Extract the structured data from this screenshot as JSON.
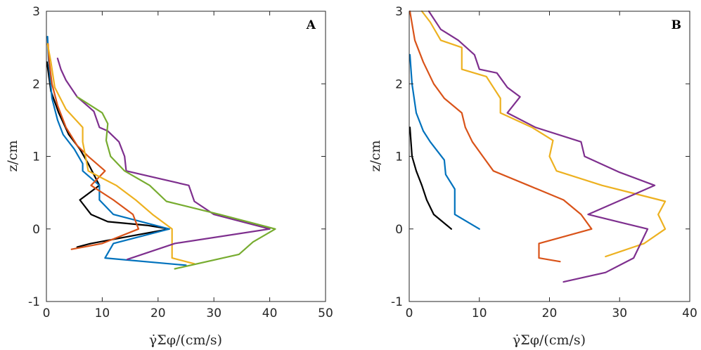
{
  "chart_data": [
    {
      "type": "line",
      "panel_label": "A",
      "xlabel": "γ̇Σφ/(cm/s)",
      "ylabel": "z/cm",
      "xlim": [
        0,
        50
      ],
      "ylim": [
        -1,
        3
      ],
      "xticks": [
        "0",
        "10",
        "20",
        "30",
        "40",
        "50"
      ],
      "yticks": [
        "-1",
        "0",
        "1",
        "2",
        "3"
      ],
      "series": [
        {
          "name": "black",
          "color": "#000000",
          "points": [
            [
              0.1,
              2.3
            ],
            [
              0.8,
              1.9
            ],
            [
              2.2,
              1.6
            ],
            [
              4,
              1.3
            ],
            [
              6,
              1.1
            ],
            [
              7.5,
              0.9
            ],
            [
              9.5,
              0.6
            ],
            [
              6,
              0.4
            ],
            [
              8,
              0.2
            ],
            [
              11,
              0.1
            ],
            [
              18,
              0.05
            ],
            [
              22,
              0
            ],
            [
              15,
              -0.1
            ],
            [
              8,
              -0.2
            ],
            [
              5.5,
              -0.25
            ]
          ]
        },
        {
          "name": "blue",
          "color": "#0072BD",
          "points": [
            [
              0.2,
              2.65
            ],
            [
              0.4,
              2.3
            ],
            [
              1,
              1.8
            ],
            [
              2,
              1.5
            ],
            [
              3,
              1.3
            ],
            [
              5,
              1.1
            ],
            [
              6.5,
              0.9
            ],
            [
              6.5,
              0.8
            ],
            [
              9.5,
              0.6
            ],
            [
              9.5,
              0.4
            ],
            [
              12,
              0.2
            ],
            [
              22,
              0
            ],
            [
              12,
              -0.2
            ],
            [
              10.5,
              -0.4
            ],
            [
              25,
              -0.5
            ]
          ]
        },
        {
          "name": "orange",
          "color": "#D95319",
          "points": [
            [
              0.3,
              2.55
            ],
            [
              0.5,
              2.3
            ],
            [
              1,
              2.0
            ],
            [
              2,
              1.7
            ],
            [
              3.5,
              1.4
            ],
            [
              5.5,
              1.15
            ],
            [
              7.5,
              1
            ],
            [
              10.5,
              0.8
            ],
            [
              8,
              0.6
            ],
            [
              12,
              0.4
            ],
            [
              15.5,
              0.2
            ],
            [
              16.5,
              0
            ],
            [
              10,
              -0.2
            ],
            [
              4.5,
              -0.28
            ]
          ]
        },
        {
          "name": "yellow",
          "color": "#EDB120",
          "points": [
            [
              0.2,
              2.55
            ],
            [
              0.8,
              2.3
            ],
            [
              1.5,
              1.95
            ],
            [
              3.5,
              1.65
            ],
            [
              6.5,
              1.4
            ],
            [
              6.5,
              1.2
            ],
            [
              7,
              1.0
            ],
            [
              7.5,
              0.8
            ],
            [
              12.5,
              0.6
            ],
            [
              16,
              0.4
            ],
            [
              19,
              0.2
            ],
            [
              22.5,
              0
            ],
            [
              22.5,
              -0.4
            ],
            [
              26.5,
              -0.48
            ]
          ]
        },
        {
          "name": "purple",
          "color": "#7E2F8E",
          "points": [
            [
              2,
              2.35
            ],
            [
              2.6,
              2.2
            ],
            [
              3.5,
              2.05
            ],
            [
              5.5,
              1.82
            ],
            [
              8.5,
              1.62
            ],
            [
              9.5,
              1.4
            ],
            [
              11,
              1.35
            ],
            [
              13,
              1.2
            ],
            [
              14,
              1.0
            ],
            [
              14.3,
              0.8
            ],
            [
              25.5,
              0.6
            ],
            [
              26.5,
              0.38
            ],
            [
              30,
              0.2
            ],
            [
              40,
              0
            ],
            [
              23,
              -0.2
            ],
            [
              14.5,
              -0.42
            ]
          ]
        },
        {
          "name": "green",
          "color": "#77AC30",
          "points": [
            [
              5.5,
              1.82
            ],
            [
              10,
              1.6
            ],
            [
              11,
              1.45
            ],
            [
              10.7,
              1.22
            ],
            [
              11.5,
              1.0
            ],
            [
              14,
              0.8
            ],
            [
              18.5,
              0.6
            ],
            [
              21.5,
              0.38
            ],
            [
              31,
              0.2
            ],
            [
              41,
              0
            ],
            [
              37,
              -0.18
            ],
            [
              34.5,
              -0.35
            ],
            [
              23,
              -0.55
            ]
          ]
        }
      ]
    },
    {
      "type": "line",
      "panel_label": "B",
      "xlabel": "γ̇Σφ/(cm/s)",
      "ylabel": "z/cm",
      "xlim": [
        0,
        40
      ],
      "ylim": [
        -1,
        3
      ],
      "xticks": [
        "0",
        "10",
        "20",
        "30",
        "40"
      ],
      "yticks": [
        "-1",
        "0",
        "1",
        "2",
        "3"
      ],
      "series": [
        {
          "name": "black",
          "color": "#000000",
          "points": [
            [
              0.1,
              1.4
            ],
            [
              0.4,
              1.0
            ],
            [
              1,
              0.8
            ],
            [
              1.8,
              0.6
            ],
            [
              2.5,
              0.4
            ],
            [
              3.5,
              0.2
            ],
            [
              6,
              0
            ]
          ]
        },
        {
          "name": "blue",
          "color": "#0072BD",
          "points": [
            [
              0.1,
              2.4
            ],
            [
              0.4,
              2.0
            ],
            [
              1,
              1.6
            ],
            [
              2,
              1.35
            ],
            [
              3,
              1.2
            ],
            [
              5,
              0.95
            ],
            [
              5.2,
              0.75
            ],
            [
              6.5,
              0.55
            ],
            [
              6.5,
              0.2
            ],
            [
              10,
              0
            ]
          ]
        },
        {
          "name": "orange",
          "color": "#D95319",
          "points": [
            [
              0.1,
              3.0
            ],
            [
              0.8,
              2.6
            ],
            [
              2,
              2.3
            ],
            [
              3.5,
              2.0
            ],
            [
              5,
              1.8
            ],
            [
              7.5,
              1.6
            ],
            [
              8,
              1.4
            ],
            [
              9,
              1.2
            ],
            [
              10.5,
              1.0
            ],
            [
              12,
              0.8
            ],
            [
              17,
              0.6
            ],
            [
              22,
              0.4
            ],
            [
              24.5,
              0.2
            ],
            [
              26,
              0
            ],
            [
              18.5,
              -0.2
            ],
            [
              18.5,
              -0.4
            ],
            [
              21.5,
              -0.45
            ]
          ]
        },
        {
          "name": "yellow",
          "color": "#EDB120",
          "points": [
            [
              1.8,
              3.0
            ],
            [
              3,
              2.85
            ],
            [
              4.5,
              2.6
            ],
            [
              7.5,
              2.5
            ],
            [
              7.5,
              2.2
            ],
            [
              11,
              2.1
            ],
            [
              13,
              1.8
            ],
            [
              13,
              1.6
            ],
            [
              17.5,
              1.4
            ],
            [
              20.5,
              1.22
            ],
            [
              20,
              1.0
            ],
            [
              21,
              0.8
            ],
            [
              27.5,
              0.6
            ],
            [
              36.5,
              0.38
            ],
            [
              35.5,
              0.2
            ],
            [
              36.5,
              0
            ],
            [
              33.5,
              -0.2
            ],
            [
              28,
              -0.38
            ]
          ]
        },
        {
          "name": "purple",
          "color": "#7E2F8E",
          "points": [
            [
              2.8,
              3.0
            ],
            [
              4.5,
              2.75
            ],
            [
              7,
              2.6
            ],
            [
              9.3,
              2.4
            ],
            [
              10,
              2.2
            ],
            [
              12.5,
              2.15
            ],
            [
              14,
              1.95
            ],
            [
              15.8,
              1.82
            ],
            [
              14,
              1.6
            ],
            [
              18,
              1.4
            ],
            [
              24.5,
              1.2
            ],
            [
              25,
              1.0
            ],
            [
              30,
              0.78
            ],
            [
              35,
              0.6
            ],
            [
              25.5,
              0.2
            ],
            [
              34,
              0
            ],
            [
              33,
              -0.2
            ],
            [
              32,
              -0.4
            ],
            [
              28,
              -0.6
            ],
            [
              22,
              -0.73
            ]
          ]
        }
      ]
    }
  ]
}
